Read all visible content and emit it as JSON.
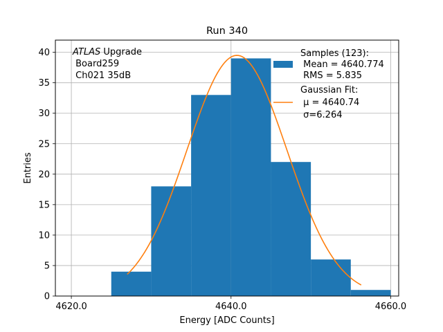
{
  "chart_data": {
    "type": "bar",
    "title": "Run 340",
    "xlabel": "Energy [ADC Counts]",
    "ylabel": "Entries",
    "xlim": [
      4618.0,
      4661.0
    ],
    "ylim": [
      0,
      42
    ],
    "grid": true,
    "xticks": [
      4620.0,
      4640.0,
      4660.0
    ],
    "xtick_labels": [
      "4620.0",
      "4640.0",
      "4660.0"
    ],
    "yticks": [
      0,
      5,
      10,
      15,
      20,
      25,
      30,
      35,
      40
    ],
    "ytick_labels": [
      "0",
      "5",
      "10",
      "15",
      "20",
      "25",
      "30",
      "35",
      "40"
    ],
    "bins": [
      {
        "x0": 4625,
        "x1": 4630,
        "count": 4
      },
      {
        "x0": 4630,
        "x1": 4635,
        "count": 18
      },
      {
        "x0": 4635,
        "x1": 4640,
        "count": 33
      },
      {
        "x0": 4640,
        "x1": 4645,
        "count": 39
      },
      {
        "x0": 4645,
        "x1": 4650,
        "count": 22
      },
      {
        "x0": 4650,
        "x1": 4655,
        "count": 6
      },
      {
        "x0": 4655,
        "x1": 4660,
        "count": 1
      }
    ],
    "bar_color": "#1f77b4",
    "fit": {
      "type": "gaussian",
      "mu": 4640.74,
      "sigma": 6.264,
      "amplitude": 39.5,
      "x_range": [
        4627,
        4656.3
      ],
      "color": "#ff7f0e"
    },
    "annotation": {
      "line1_italic": "ATLAS",
      "line1_rest": " Upgrade",
      "line2": " Board259",
      "line3": " Ch021 35dB"
    },
    "legend": {
      "placement": "top-right",
      "samples_title": "Samples (123):",
      "samples_mean": " Mean = 4640.774",
      "samples_rms": " RMS = 5.835",
      "fit_title": "Gaussian Fit:",
      "fit_mu": " μ = 4640.74",
      "fit_sigma": " σ=6.264"
    }
  }
}
